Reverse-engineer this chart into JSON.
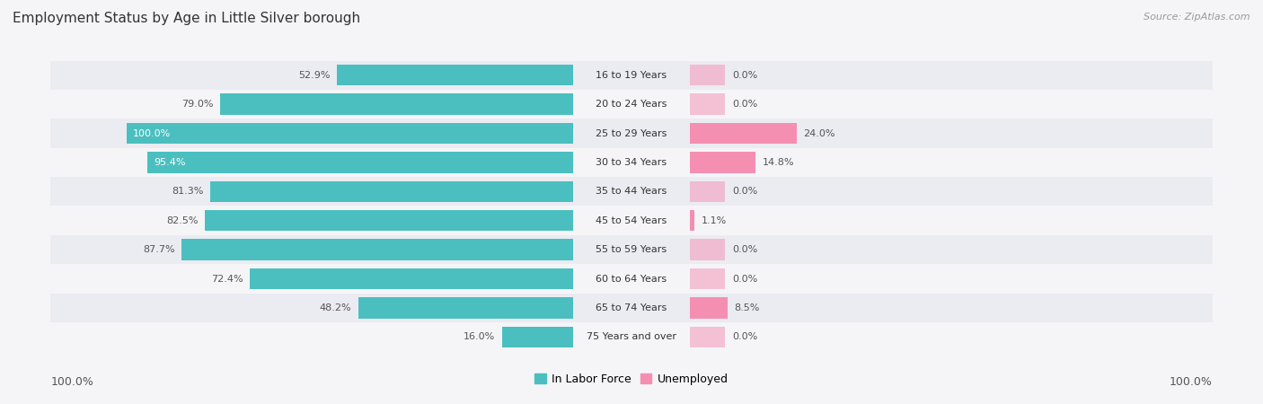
{
  "title": "Employment Status by Age in Little Silver borough",
  "source": "Source: ZipAtlas.com",
  "categories": [
    "16 to 19 Years",
    "20 to 24 Years",
    "25 to 29 Years",
    "30 to 34 Years",
    "35 to 44 Years",
    "45 to 54 Years",
    "55 to 59 Years",
    "60 to 64 Years",
    "65 to 74 Years",
    "75 Years and over"
  ],
  "in_labor_force": [
    52.9,
    79.0,
    100.0,
    95.4,
    81.3,
    82.5,
    87.7,
    72.4,
    48.2,
    16.0
  ],
  "unemployed": [
    0.0,
    0.0,
    24.0,
    14.8,
    0.0,
    1.1,
    0.0,
    0.0,
    8.5,
    0.0
  ],
  "labor_color": "#4bbfbf",
  "unemployed_color": "#f48fb1",
  "row_bg_color_odd": "#ebebf2",
  "row_bg_color_even": "#f5f5f8",
  "max_value": 100.0,
  "left_label": "100.0%",
  "right_label": "100.0%",
  "legend_labor": "In Labor Force",
  "legend_unemployed": "Unemployed",
  "title_fontsize": 11,
  "source_fontsize": 8,
  "bar_label_fontsize": 8,
  "cat_label_fontsize": 8,
  "legend_fontsize": 9
}
